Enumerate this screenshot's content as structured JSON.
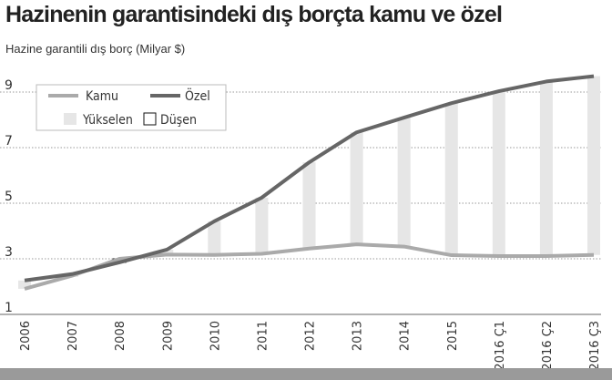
{
  "chart_data": {
    "type": "line",
    "title": "Hazinenin garantisindeki dış borçta kamu ve özel",
    "subtitle": "Hazine garantili dış borç (Milyar $)",
    "categories": [
      "2006",
      "2007",
      "2008",
      "2009",
      "2010",
      "2011",
      "2012",
      "2013",
      "2014",
      "2015",
      "2016 Ç1",
      "2016 Ç2",
      "2016 Ç3"
    ],
    "series": [
      {
        "name": "Kamu",
        "color": "#aaaaaa",
        "values": [
          1.92,
          2.39,
          3.0,
          3.15,
          3.14,
          3.18,
          3.37,
          3.52,
          3.44,
          3.13,
          3.1,
          3.1,
          3.14
        ]
      },
      {
        "name": "Özel",
        "color": "#666666",
        "values": [
          2.22,
          2.45,
          2.87,
          3.33,
          4.35,
          5.2,
          6.47,
          7.55,
          8.08,
          8.6,
          9.03,
          9.38,
          9.57
        ]
      }
    ],
    "legend": {
      "yukselen": "Yükselen",
      "dusen": "Düşen",
      "position": "top-left"
    },
    "yticks": [
      1,
      3,
      5,
      7,
      9
    ],
    "ylim": [
      1,
      10
    ],
    "grid": true,
    "colors": {
      "rising": "#e6e6e6",
      "falling": "#ffffff"
    }
  }
}
